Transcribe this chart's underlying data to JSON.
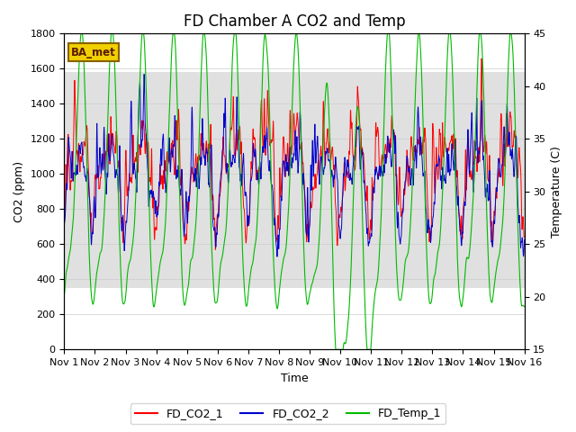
{
  "title": "FD Chamber A CO2 and Temp",
  "xlabel": "Time",
  "ylabel_left": "CO2 (ppm)",
  "ylabel_right": "Temperature (C)",
  "ylim_left": [
    0,
    1800
  ],
  "ylim_right": [
    15,
    45
  ],
  "xlim": [
    0,
    15
  ],
  "xtick_labels": [
    "Nov 1",
    "Nov 2",
    "Nov 3",
    "Nov 4",
    "Nov 5",
    "Nov 6",
    "Nov 7",
    "Nov 8",
    "Nov 9",
    "Nov 10",
    "Nov 11",
    "Nov 12",
    "Nov 13",
    "Nov 14",
    "Nov 15",
    "Nov 16"
  ],
  "xtick_positions": [
    0,
    1,
    2,
    3,
    4,
    5,
    6,
    7,
    8,
    9,
    10,
    11,
    12,
    13,
    14,
    15
  ],
  "color_co2_1": "#ff0000",
  "color_co2_2": "#0000cc",
  "color_temp": "#00bb00",
  "shade_ymin": 350,
  "shade_ymax": 1580,
  "bg_color": "#ffffff",
  "shade_color": "#e0e0e0",
  "ba_met_label": "BA_met",
  "legend_labels": [
    "FD_CO2_1",
    "FD_CO2_2",
    "FD_Temp_1"
  ],
  "title_fontsize": 12,
  "axis_label_fontsize": 9,
  "tick_fontsize": 8
}
